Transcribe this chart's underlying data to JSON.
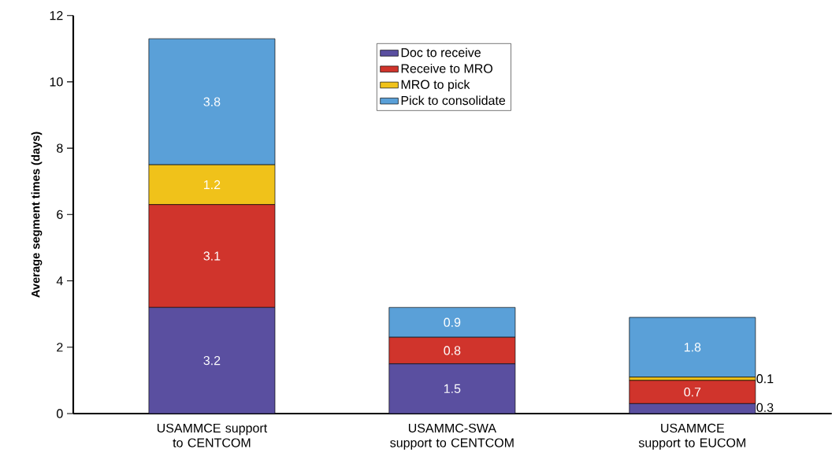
{
  "chart_data": {
    "type": "bar",
    "stacked": true,
    "ylabel": "Average segment times (days)",
    "categories": [
      "USAMMCE support to CENTCOM",
      "USAMMC-SWA support to CENTCOM",
      "USAMMCE support to EUCOM"
    ],
    "series": [
      {
        "name": "Doc to receive",
        "color": "#5a4fa0",
        "values": [
          3.2,
          1.5,
          0.3
        ],
        "value_labels": [
          "3.2",
          "1.5",
          "0.3"
        ]
      },
      {
        "name": "Receive to MRO",
        "color": "#d0342c",
        "values": [
          3.1,
          0.8,
          0.7
        ],
        "value_labels": [
          "3.1",
          "0.8",
          "0.7"
        ]
      },
      {
        "name": "MRO to pick",
        "color": "#f0c21a",
        "values": [
          1.2,
          0,
          0.1
        ],
        "value_labels": [
          "1.2",
          null,
          "0.1"
        ]
      },
      {
        "name": "Pick to consolidate",
        "color": "#5aa0d8",
        "values": [
          3.8,
          0.9,
          1.8
        ],
        "value_labels": [
          "3.8",
          "0.9",
          "1.8"
        ]
      }
    ],
    "ylim": [
      0,
      12
    ],
    "yticks": [
      0,
      2,
      4,
      6,
      8,
      10,
      12
    ],
    "grid": false,
    "legend": "top"
  }
}
